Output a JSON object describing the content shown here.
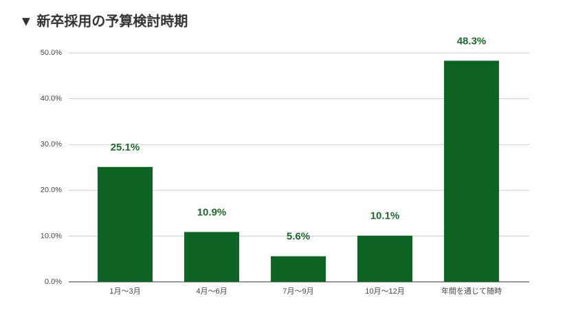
{
  "chart_data": {
    "type": "bar",
    "title": "▼ 新卒採用の予算検討時期",
    "categories": [
      "1月～3月",
      "4月～6月",
      "7月～9月",
      "10月～12月",
      "年間を通じて随時"
    ],
    "values": [
      25.1,
      10.9,
      5.6,
      10.1,
      48.3
    ],
    "value_labels": [
      "25.1%",
      "10.9%",
      "5.6%",
      "10.1%",
      "48.3%"
    ],
    "color": "#0d6423",
    "ylim": [
      0,
      50
    ],
    "yticks": [
      {
        "value": 0,
        "label": "0.0%"
      },
      {
        "value": 10,
        "label": "10.0%"
      },
      {
        "value": 20,
        "label": "20.0%"
      },
      {
        "value": 30,
        "label": "30.0%"
      },
      {
        "value": 40,
        "label": "40.0%"
      },
      {
        "value": 50,
        "label": "50.0%"
      }
    ],
    "grid": true
  }
}
